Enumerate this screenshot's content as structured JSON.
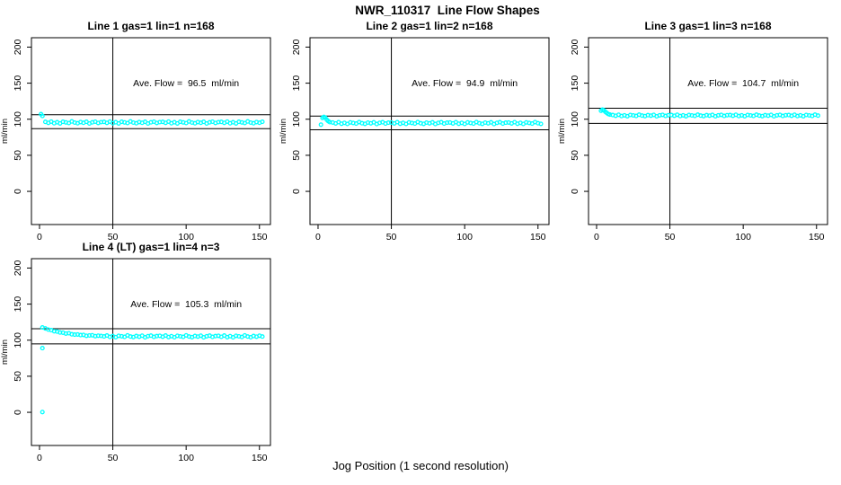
{
  "figure_title": "NWR_110317  Line Flow Shapes",
  "xlabel": "Jog Position (1 second resolution)",
  "colors": {
    "points": "#00FFFF",
    "axis": "#000000",
    "background": "#FFFFFF"
  },
  "chart_data": [
    {
      "type": "scatter",
      "title": "Line 1 gas=1 lin=1 n=168",
      "annotation": "Ave. Flow =  96.5  ml/min",
      "ave_flow_ml_min": 96.5,
      "ylabel": "ml/min",
      "x_ticks": [
        0,
        50,
        100,
        150
      ],
      "y_ticks": [
        0,
        50,
        100,
        150,
        200
      ],
      "xlim": [
        -5.5,
        157.5
      ],
      "ylim": [
        -46,
        213
      ],
      "vline_x": 50,
      "hlines": [
        106.2,
        86.9
      ],
      "grid": false,
      "points": [
        [
          1,
          107
        ],
        [
          2,
          104.5
        ],
        [
          4,
          96.3
        ],
        [
          6,
          95.0
        ],
        [
          8,
          96.7
        ],
        [
          10,
          94.5
        ],
        [
          12,
          95.8
        ],
        [
          14,
          94.2
        ],
        [
          16,
          96.4
        ],
        [
          18,
          95.6
        ],
        [
          20,
          94.7
        ],
        [
          22,
          96.9
        ],
        [
          24,
          95.3
        ],
        [
          26,
          94.4
        ],
        [
          28,
          96.1
        ],
        [
          30,
          95.1
        ],
        [
          32,
          96.5
        ],
        [
          34,
          94.1
        ],
        [
          36,
          95.7
        ],
        [
          38,
          96.6
        ],
        [
          40,
          94.8
        ],
        [
          42,
          96.0
        ],
        [
          44,
          96.3
        ],
        [
          46,
          95.0
        ],
        [
          48,
          96.7
        ],
        [
          50,
          94.5
        ],
        [
          52,
          95.8
        ],
        [
          54,
          94.2
        ],
        [
          56,
          96.4
        ],
        [
          58,
          95.6
        ],
        [
          60,
          94.7
        ],
        [
          62,
          96.9
        ],
        [
          64,
          95.3
        ],
        [
          66,
          94.4
        ],
        [
          68,
          96.1
        ],
        [
          70,
          95.1
        ],
        [
          72,
          96.5
        ],
        [
          74,
          94.1
        ],
        [
          76,
          95.7
        ],
        [
          78,
          96.6
        ],
        [
          80,
          94.8
        ],
        [
          82,
          96.0
        ],
        [
          84,
          96.3
        ],
        [
          86,
          95.0
        ],
        [
          88,
          96.7
        ],
        [
          90,
          94.5
        ],
        [
          92,
          95.8
        ],
        [
          94,
          94.2
        ],
        [
          96,
          96.4
        ],
        [
          98,
          95.6
        ],
        [
          100,
          94.7
        ],
        [
          102,
          96.9
        ],
        [
          104,
          95.3
        ],
        [
          106,
          94.4
        ],
        [
          108,
          96.1
        ],
        [
          110,
          95.1
        ],
        [
          112,
          96.5
        ],
        [
          114,
          94.1
        ],
        [
          116,
          95.7
        ],
        [
          118,
          96.6
        ],
        [
          120,
          94.8
        ],
        [
          122,
          96.0
        ],
        [
          124,
          96.3
        ],
        [
          126,
          95.0
        ],
        [
          128,
          96.7
        ],
        [
          130,
          94.5
        ],
        [
          132,
          95.8
        ],
        [
          134,
          94.2
        ],
        [
          136,
          96.4
        ],
        [
          138,
          95.6
        ],
        [
          140,
          94.7
        ],
        [
          142,
          96.9
        ],
        [
          144,
          95.3
        ],
        [
          146,
          94.4
        ],
        [
          148,
          96.1
        ],
        [
          150,
          95.1
        ],
        [
          152,
          96.5
        ]
      ]
    },
    {
      "type": "scatter",
      "title": "Line 2 gas=1 lin=2 n=168",
      "annotation": "Ave. Flow =  94.9  ml/min",
      "ave_flow_ml_min": 94.9,
      "ylabel": "ml/min",
      "x_ticks": [
        0,
        50,
        100,
        150
      ],
      "y_ticks": [
        0,
        50,
        100,
        150,
        200
      ],
      "xlim": [
        -5.5,
        157.5
      ],
      "ylim": [
        -46,
        213
      ],
      "vline_x": 50,
      "hlines": [
        104.4,
        85.4
      ],
      "grid": false,
      "points": [
        [
          2,
          92.5
        ],
        [
          3,
          101.8
        ],
        [
          4,
          103.2
        ],
        [
          5,
          102.0
        ],
        [
          6,
          99.2
        ],
        [
          7,
          97.3
        ],
        [
          8,
          96.0
        ],
        [
          10,
          95.5
        ],
        [
          12,
          94.2
        ],
        [
          14,
          95.9
        ],
        [
          16,
          93.7
        ],
        [
          18,
          95.0
        ],
        [
          20,
          93.4
        ],
        [
          22,
          95.6
        ],
        [
          24,
          94.8
        ],
        [
          26,
          93.9
        ],
        [
          28,
          96.1
        ],
        [
          30,
          94.5
        ],
        [
          32,
          93.6
        ],
        [
          34,
          95.3
        ],
        [
          36,
          94.3
        ],
        [
          38,
          95.7
        ],
        [
          40,
          93.3
        ],
        [
          42,
          94.9
        ],
        [
          44,
          95.8
        ],
        [
          46,
          94.0
        ],
        [
          48,
          95.2
        ],
        [
          50,
          95.5
        ],
        [
          52,
          94.2
        ],
        [
          54,
          95.9
        ],
        [
          56,
          93.7
        ],
        [
          58,
          95.0
        ],
        [
          60,
          93.4
        ],
        [
          62,
          95.6
        ],
        [
          64,
          94.8
        ],
        [
          66,
          93.9
        ],
        [
          68,
          96.1
        ],
        [
          70,
          94.5
        ],
        [
          72,
          93.6
        ],
        [
          74,
          95.3
        ],
        [
          76,
          94.3
        ],
        [
          78,
          95.7
        ],
        [
          80,
          93.3
        ],
        [
          82,
          94.9
        ],
        [
          84,
          95.8
        ],
        [
          86,
          94.0
        ],
        [
          88,
          95.2
        ],
        [
          90,
          95.5
        ],
        [
          92,
          94.2
        ],
        [
          94,
          95.9
        ],
        [
          96,
          93.7
        ],
        [
          98,
          95.0
        ],
        [
          100,
          93.4
        ],
        [
          102,
          95.6
        ],
        [
          104,
          94.8
        ],
        [
          106,
          93.9
        ],
        [
          108,
          96.1
        ],
        [
          110,
          94.5
        ],
        [
          112,
          93.6
        ],
        [
          114,
          95.3
        ],
        [
          116,
          94.3
        ],
        [
          118,
          95.7
        ],
        [
          120,
          93.3
        ],
        [
          122,
          94.9
        ],
        [
          124,
          95.8
        ],
        [
          126,
          94.0
        ],
        [
          128,
          95.2
        ],
        [
          130,
          95.5
        ],
        [
          132,
          94.2
        ],
        [
          134,
          95.9
        ],
        [
          136,
          93.7
        ],
        [
          138,
          95.0
        ],
        [
          140,
          93.4
        ],
        [
          142,
          95.6
        ],
        [
          144,
          94.8
        ],
        [
          146,
          93.9
        ],
        [
          148,
          96.1
        ],
        [
          150,
          94.5
        ],
        [
          152,
          93.6
        ]
      ]
    },
    {
      "type": "scatter",
      "title": "Line 3 gas=1 lin=3 n=168",
      "annotation": "Ave. Flow =  104.7  ml/min",
      "ave_flow_ml_min": 104.7,
      "ylabel": "ml/min",
      "x_ticks": [
        0,
        50,
        100,
        150
      ],
      "y_ticks": [
        0,
        50,
        100,
        150,
        200
      ],
      "xlim": [
        -5.5,
        157.5
      ],
      "ylim": [
        -46,
        213
      ],
      "vline_x": 50,
      "hlines": [
        115.2,
        94.2
      ],
      "grid": false,
      "points": [
        [
          3,
          111.8
        ],
        [
          4,
          113.2
        ],
        [
          5,
          112.4
        ],
        [
          6,
          110.2
        ],
        [
          7,
          108.6
        ],
        [
          8,
          107.2
        ],
        [
          9,
          106.4
        ],
        [
          11,
          105.8
        ],
        [
          13,
          104.8
        ],
        [
          15,
          106.2
        ],
        [
          17,
          104.4
        ],
        [
          19,
          105.4
        ],
        [
          21,
          104.2
        ],
        [
          23,
          105.9
        ],
        [
          25,
          105.3
        ],
        [
          27,
          104.6
        ],
        [
          29,
          106.3
        ],
        [
          31,
          105.0
        ],
        [
          33,
          104.3
        ],
        [
          35,
          105.7
        ],
        [
          37,
          104.9
        ],
        [
          39,
          106.0
        ],
        [
          41,
          104.1
        ],
        [
          43,
          105.4
        ],
        [
          45,
          106.1
        ],
        [
          47,
          104.6
        ],
        [
          49,
          105.6
        ],
        [
          51,
          105.8
        ],
        [
          53,
          104.8
        ],
        [
          55,
          106.2
        ],
        [
          57,
          104.4
        ],
        [
          59,
          105.4
        ],
        [
          61,
          104.2
        ],
        [
          63,
          105.9
        ],
        [
          65,
          105.3
        ],
        [
          67,
          104.6
        ],
        [
          69,
          106.3
        ],
        [
          71,
          105.0
        ],
        [
          73,
          104.3
        ],
        [
          75,
          105.7
        ],
        [
          77,
          104.9
        ],
        [
          79,
          106.0
        ],
        [
          81,
          104.1
        ],
        [
          83,
          105.4
        ],
        [
          85,
          106.1
        ],
        [
          87,
          104.6
        ],
        [
          89,
          105.6
        ],
        [
          91,
          105.8
        ],
        [
          93,
          104.8
        ],
        [
          95,
          106.2
        ],
        [
          97,
          104.4
        ],
        [
          99,
          105.4
        ],
        [
          101,
          104.2
        ],
        [
          103,
          105.9
        ],
        [
          105,
          105.3
        ],
        [
          107,
          104.6
        ],
        [
          109,
          106.3
        ],
        [
          111,
          105.0
        ],
        [
          113,
          104.3
        ],
        [
          115,
          105.7
        ],
        [
          117,
          104.9
        ],
        [
          119,
          106.0
        ],
        [
          121,
          104.1
        ],
        [
          123,
          105.4
        ],
        [
          125,
          106.1
        ],
        [
          127,
          104.6
        ],
        [
          129,
          105.6
        ],
        [
          131,
          105.8
        ],
        [
          133,
          104.8
        ],
        [
          135,
          106.2
        ],
        [
          137,
          104.4
        ],
        [
          139,
          105.4
        ],
        [
          141,
          104.2
        ],
        [
          143,
          105.9
        ],
        [
          145,
          105.3
        ],
        [
          147,
          104.6
        ],
        [
          149,
          106.3
        ],
        [
          151,
          105.0
        ]
      ]
    },
    {
      "type": "scatter",
      "title": "Line 4 (LT) gas=1 lin=4 n=3",
      "annotation": "Ave. Flow =  105.3  ml/min",
      "ave_flow_ml_min": 105.3,
      "ylabel": "ml/min",
      "x_ticks": [
        0,
        50,
        100,
        150
      ],
      "y_ticks": [
        0,
        50,
        100,
        150,
        200
      ],
      "xlim": [
        -5.5,
        157.5
      ],
      "ylim": [
        -46,
        213
      ],
      "vline_x": 50,
      "hlines": [
        115.8,
        94.8
      ],
      "grid": false,
      "points": [
        [
          2,
          89
        ],
        [
          2,
          0.3
        ],
        [
          2,
          117.6
        ],
        [
          4,
          116.2
        ],
        [
          6,
          114.6
        ],
        [
          8,
          113.9
        ],
        [
          10,
          112.4
        ],
        [
          12,
          111.9
        ],
        [
          14,
          110.6
        ],
        [
          16,
          110.4
        ],
        [
          18,
          109.2
        ],
        [
          20,
          109.6
        ],
        [
          22,
          108.2
        ],
        [
          24,
          107.6
        ],
        [
          26,
          107.9
        ],
        [
          28,
          107.0
        ],
        [
          30,
          107.3
        ],
        [
          32,
          106.0
        ],
        [
          34,
          106.5
        ],
        [
          36,
          106.8
        ],
        [
          38,
          105.6
        ],
        [
          40,
          106.2
        ],
        [
          42,
          105.9
        ],
        [
          44,
          105.2
        ],
        [
          46,
          106.4
        ],
        [
          48,
          104.6
        ],
        [
          50,
          105.7
        ],
        [
          52,
          104.2
        ],
        [
          54,
          106.1
        ],
        [
          56,
          105.4
        ],
        [
          58,
          104.5
        ],
        [
          60,
          106.6
        ],
        [
          62,
          105.1
        ],
        [
          64,
          104.3
        ],
        [
          66,
          105.8
        ],
        [
          68,
          104.8
        ],
        [
          70,
          106.2
        ],
        [
          72,
          103.9
        ],
        [
          74,
          105.5
        ],
        [
          76,
          106.3
        ],
        [
          78,
          104.6
        ],
        [
          80,
          105.7
        ],
        [
          82,
          106.0
        ],
        [
          84,
          104.8
        ],
        [
          86,
          106.4
        ],
        [
          88,
          104.3
        ],
        [
          90,
          105.5
        ],
        [
          92,
          104.0
        ],
        [
          94,
          106.1
        ],
        [
          96,
          105.3
        ],
        [
          98,
          104.5
        ],
        [
          100,
          106.6
        ],
        [
          102,
          105.0
        ],
        [
          104,
          104.2
        ],
        [
          106,
          105.8
        ],
        [
          108,
          104.9
        ],
        [
          110,
          106.2
        ],
        [
          112,
          103.9
        ],
        [
          114,
          105.4
        ],
        [
          116,
          106.3
        ],
        [
          118,
          104.5
        ],
        [
          120,
          105.7
        ],
        [
          122,
          106.0
        ],
        [
          124,
          104.7
        ],
        [
          126,
          106.4
        ],
        [
          128,
          104.2
        ],
        [
          130,
          105.5
        ],
        [
          132,
          103.9
        ],
        [
          134,
          106.1
        ],
        [
          136,
          105.3
        ],
        [
          138,
          104.4
        ],
        [
          140,
          106.6
        ],
        [
          142,
          105.0
        ],
        [
          144,
          104.1
        ],
        [
          146,
          105.8
        ],
        [
          148,
          104.8
        ],
        [
          150,
          106.2
        ],
        [
          152,
          105.0
        ]
      ]
    }
  ]
}
